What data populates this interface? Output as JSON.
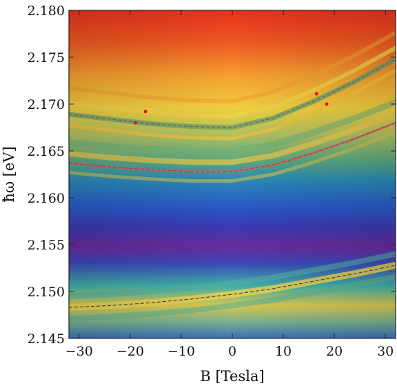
{
  "chart_data": {
    "type": "heatmap",
    "xlabel": "B [Tesla]",
    "ylabel": "ħω [eV]",
    "xlim": [
      -32,
      32
    ],
    "ylim": [
      2.145,
      2.18
    ],
    "x_ticks": [
      -30,
      -20,
      -10,
      0,
      10,
      20,
      30
    ],
    "x_tick_labels": [
      "−30",
      "−20",
      "−10",
      "0",
      "10",
      "20",
      "30"
    ],
    "y_ticks": [
      2.145,
      2.15,
      2.155,
      2.16,
      2.165,
      2.17,
      2.175,
      2.18
    ],
    "y_tick_labels": [
      "2.145",
      "2.150",
      "2.155",
      "2.160",
      "2.165",
      "2.170",
      "2.175",
      "2.180"
    ],
    "colormap": [
      "#3040c0",
      "#6a2aa0",
      "#20a0b0",
      "#60b070",
      "#e8d040",
      "#f0a030",
      "#e83020"
    ],
    "dashed_fit_lines": [
      {
        "color": "#6a4a9a",
        "points": [
          [
            -32,
            2.1689
          ],
          [
            -24,
            2.1684
          ],
          [
            -16,
            2.1679
          ],
          [
            -8,
            2.1676
          ],
          [
            0,
            2.1675
          ],
          [
            8,
            2.1685
          ],
          [
            16,
            2.1703
          ],
          [
            24,
            2.1724
          ],
          [
            32,
            2.1748
          ]
        ]
      },
      {
        "color": "#6a4a9a",
        "points": [
          [
            -32,
            2.1637
          ],
          [
            -24,
            2.1633
          ],
          [
            -16,
            2.163
          ],
          [
            -8,
            2.1628
          ],
          [
            0,
            2.1628
          ],
          [
            8,
            2.1635
          ],
          [
            16,
            2.1648
          ],
          [
            24,
            2.1663
          ],
          [
            32,
            2.168
          ]
        ]
      },
      {
        "color": "#333355",
        "points": [
          [
            -32,
            2.1483
          ],
          [
            -24,
            2.1485
          ],
          [
            -16,
            2.1488
          ],
          [
            -8,
            2.1492
          ],
          [
            0,
            2.1497
          ],
          [
            8,
            2.1503
          ],
          [
            16,
            2.1511
          ],
          [
            24,
            2.1519
          ],
          [
            32,
            2.1528
          ]
        ]
      }
    ],
    "markers": [
      {
        "x": -19,
        "y": 2.168
      },
      {
        "x": -17,
        "y": 2.1692
      },
      {
        "x": 16.5,
        "y": 2.1711
      },
      {
        "x": 18.5,
        "y": 2.17
      }
    ],
    "marker_color": "#e01010"
  }
}
